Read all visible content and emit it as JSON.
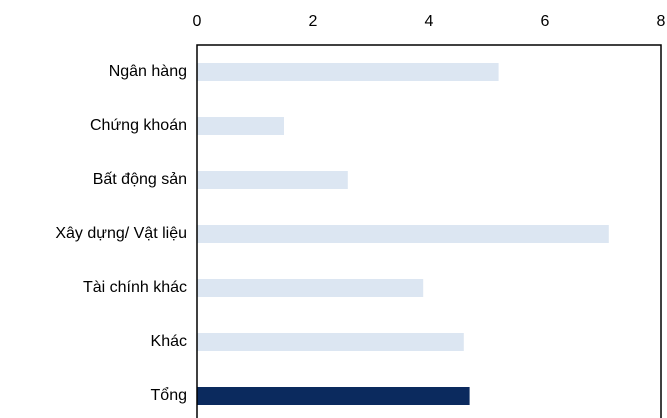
{
  "chart_data": {
    "type": "barh",
    "categories": [
      "Ngân hàng",
      "Chứng khoán",
      "Bất động sản",
      "Xây dựng/ Vật liệu",
      "Tài chính khác",
      "Khác",
      "Tổng"
    ],
    "values": [
      5.2,
      1.5,
      2.6,
      7.1,
      3.9,
      4.6,
      4.7
    ],
    "colors": [
      "#dce6f2",
      "#dce6f2",
      "#dce6f2",
      "#dce6f2",
      "#dce6f2",
      "#dce6f2",
      "#0b2a5e"
    ],
    "xlim": [
      0,
      8
    ],
    "xticks": [
      0,
      2,
      4,
      6,
      8
    ],
    "grid": false
  }
}
